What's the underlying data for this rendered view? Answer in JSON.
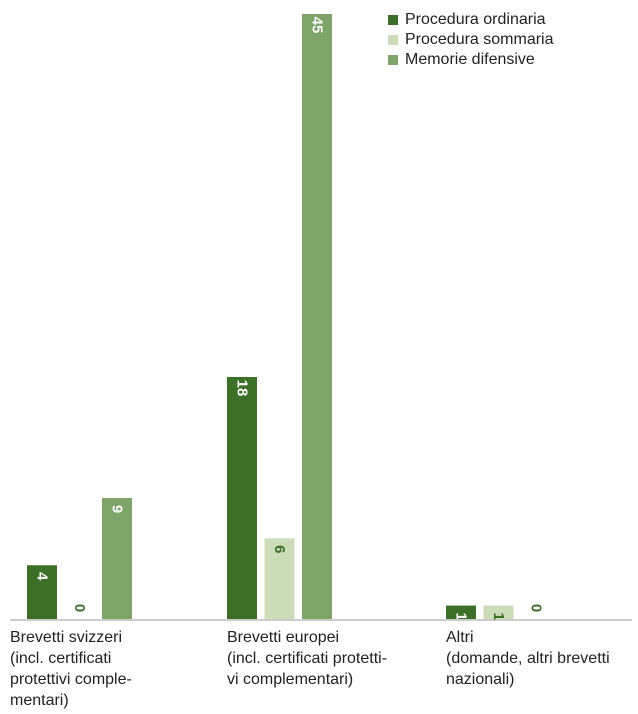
{
  "chart_data": {
    "type": "bar",
    "categories": [
      [
        "Brevetti svizzeri",
        "(incl. certificati",
        "protettivi comple-",
        "mentari)"
      ],
      [
        "Brevetti europei",
        "(incl. certificati protetti-",
        "vi complementari)"
      ],
      [
        "Altri",
        "(domande, altri brevetti",
        "nazionali)"
      ]
    ],
    "series": [
      {
        "name": "Procedura ordinaria",
        "color": "#3c7028",
        "label_color": "#ffffff",
        "values": [
          4,
          18,
          1
        ]
      },
      {
        "name": "Procedura sommaria",
        "color": "#ccdbb8",
        "label_color": "#3c7028",
        "values": [
          0,
          6,
          1
        ]
      },
      {
        "name": "Memorie difensive",
        "color": "#7ea46a",
        "label_color": "#ffffff",
        "values": [
          9,
          45,
          0
        ]
      }
    ],
    "ylim": [
      0,
      45
    ],
    "grid": false,
    "legend_position": "top-right"
  }
}
